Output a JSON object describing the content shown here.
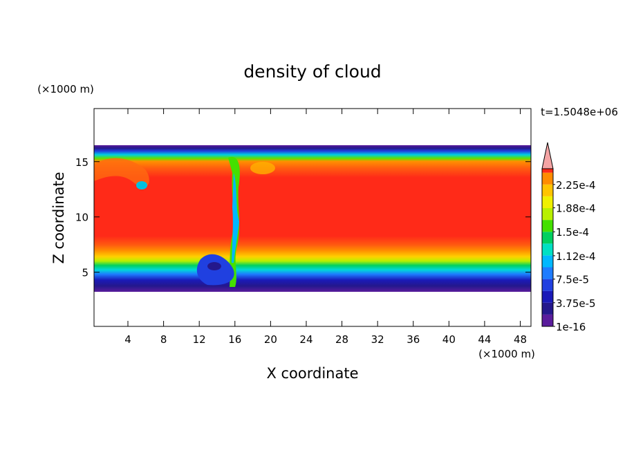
{
  "chart_data": {
    "type": "contour",
    "title": "density of cloud",
    "x_label": "X coordinate",
    "y_label": "Z coordinate",
    "x_unit": "(×1000 m)",
    "y_unit": "(×1000 m)",
    "annotation": "t=1.5048e+06",
    "xlim": [
      0.2,
      49.2
    ],
    "ylim": [
      0.1,
      19.8
    ],
    "xticks": [
      4,
      8,
      12,
      16,
      20,
      24,
      28,
      32,
      36,
      40,
      44,
      48
    ],
    "yticks": [
      5,
      10,
      15
    ],
    "colorbar": {
      "lim": [
        1e-16,
        0.00025
      ],
      "ticks": [
        {
          "value": 1e-16,
          "label": "1e-16"
        },
        {
          "value": 3.75e-05,
          "label": "3.75e-5"
        },
        {
          "value": 7.5e-05,
          "label": "7.5e-5"
        },
        {
          "value": 0.000112,
          "label": "1.12e-4"
        },
        {
          "value": 0.00015,
          "label": "1.5e-4"
        },
        {
          "value": 0.000188,
          "label": "1.88e-4"
        },
        {
          "value": 0.000225,
          "label": "2.25e-4"
        }
      ],
      "colors": [
        "#5a1c9c",
        "#24188c",
        "#1a1ab8",
        "#2040e0",
        "#1e7cff",
        "#00b8ff",
        "#00e0c4",
        "#00d060",
        "#44e000",
        "#b8f000",
        "#f0f000",
        "#ffc400",
        "#ff8c00",
        "#ff2a18"
      ],
      "over_color": "#f4a4a4"
    }
  }
}
